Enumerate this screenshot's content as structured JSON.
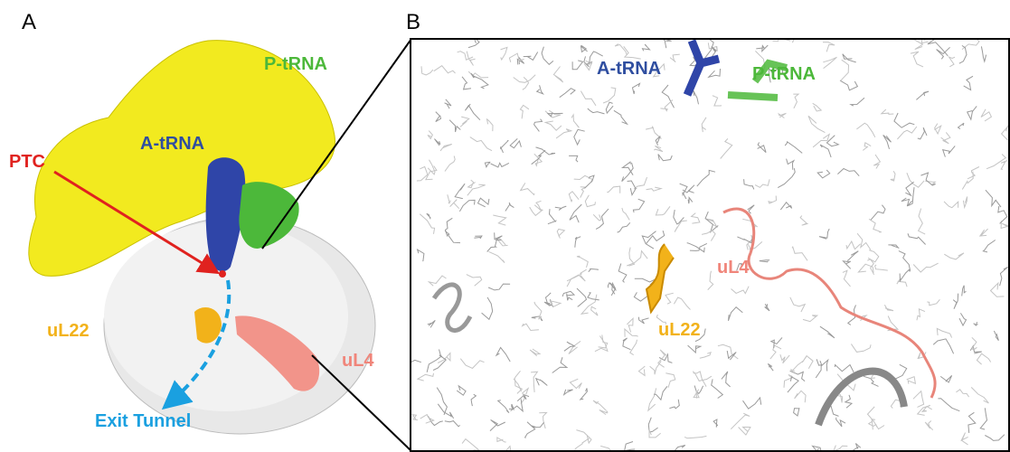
{
  "panel_a": {
    "label": "A",
    "annotations": {
      "p_trna": "P-tRNA",
      "a_trna": "A-tRNA",
      "ptc": "PTC",
      "ul22": "uL22",
      "ul4": "uL4",
      "exit_tunnel": "Exit Tunnel"
    }
  },
  "panel_b": {
    "label": "B",
    "annotations": {
      "a_trna": "A-tRNA",
      "p_trna": "P-tRNA",
      "ul4": "uL4",
      "ul22": "uL22"
    }
  }
}
